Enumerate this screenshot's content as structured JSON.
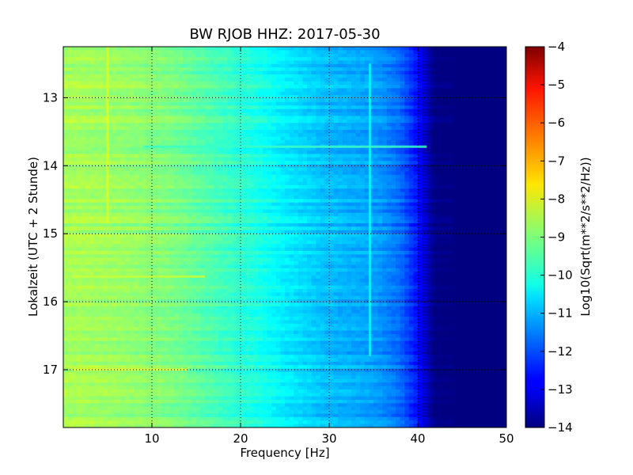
{
  "chart_data": {
    "type": "heatmap",
    "title": "BW RJOB HHZ: 2017-05-30",
    "xlabel": "Frequency [Hz]",
    "ylabel": "Lokalzeit (UTC + 2 Stunde)",
    "colorbar_label": "Log10(Sqrt(m**2/s**2/Hz))",
    "xlim": [
      0,
      50
    ],
    "ylim": [
      12.25,
      17.85
    ],
    "y_inverted": true,
    "x_ticks": [
      10,
      20,
      30,
      40,
      50
    ],
    "y_ticks": [
      13,
      14,
      15,
      16,
      17
    ],
    "colorbar_range": [
      -14,
      -4
    ],
    "colorbar_ticks": [
      -4,
      -5,
      -6,
      -7,
      -8,
      -9,
      -10,
      -11,
      -12,
      -13,
      -14
    ],
    "colormap": "jet",
    "grid": true,
    "frequency_hz": [
      0,
      2,
      5,
      8,
      10,
      12,
      15,
      18,
      20,
      22,
      25,
      28,
      30,
      32,
      34,
      36,
      38,
      40,
      41,
      42,
      45,
      50
    ],
    "typical_level": [
      -8.6,
      -8.6,
      -8.7,
      -8.8,
      -8.9,
      -9.0,
      -9.3,
      -9.6,
      -9.8,
      -10.0,
      -10.4,
      -10.7,
      -10.9,
      -11.0,
      -11.1,
      -11.3,
      -11.7,
      -12.6,
      -13.4,
      -14.0,
      -14.0,
      -14.0
    ],
    "features": [
      {
        "frequency_hz": 5,
        "from_hour": 12.25,
        "to_hour": 14.85,
        "level": -8.1,
        "label": ""
      },
      {
        "frequency_hz": 34.6,
        "from_hour": 12.5,
        "to_hour": 16.8,
        "level": -10.3,
        "label": ""
      },
      {
        "hour": 15.63,
        "from_hz": 1,
        "to_hz": 16,
        "level": -8.3,
        "label": ""
      },
      {
        "hour": 17.0,
        "from_hz": 1,
        "to_hz": 14,
        "level": -8.0,
        "label": ""
      },
      {
        "hour": 13.72,
        "from_hz": 9,
        "to_hz": 41,
        "level": -9.7,
        "label": ""
      }
    ]
  }
}
